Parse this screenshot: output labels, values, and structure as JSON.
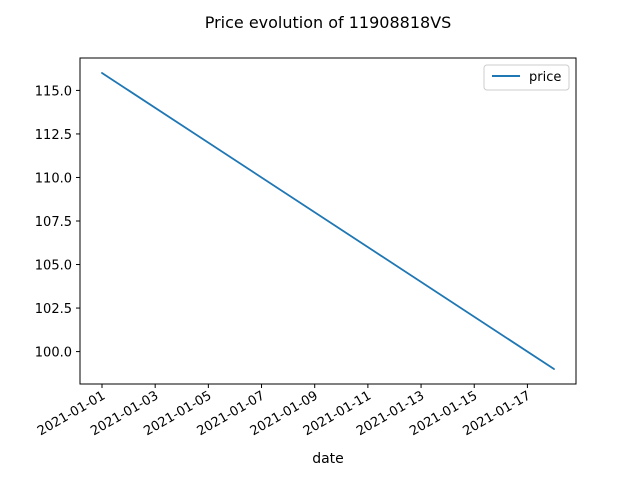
{
  "chart_data": {
    "type": "line",
    "title": "Price evolution of 11908818VS",
    "xlabel": "date",
    "ylabel": "",
    "x": [
      "2021-01-01",
      "2021-01-18"
    ],
    "series": [
      {
        "name": "price",
        "color": "#1f77b4",
        "values": [
          116.0,
          99.0
        ]
      }
    ],
    "x_ticks": [
      "2021-01-01",
      "2021-01-03",
      "2021-01-05",
      "2021-01-07",
      "2021-01-09",
      "2021-01-11",
      "2021-01-13",
      "2021-01-15",
      "2021-01-17"
    ],
    "y_ticks": [
      "100.0",
      "102.5",
      "105.0",
      "107.5",
      "110.0",
      "112.5",
      "115.0"
    ],
    "xlim": [
      "2021-01-01",
      "2021-01-18"
    ],
    "ylim": [
      99.0,
      116.0
    ],
    "grid": false,
    "legend_position": "top-right"
  }
}
